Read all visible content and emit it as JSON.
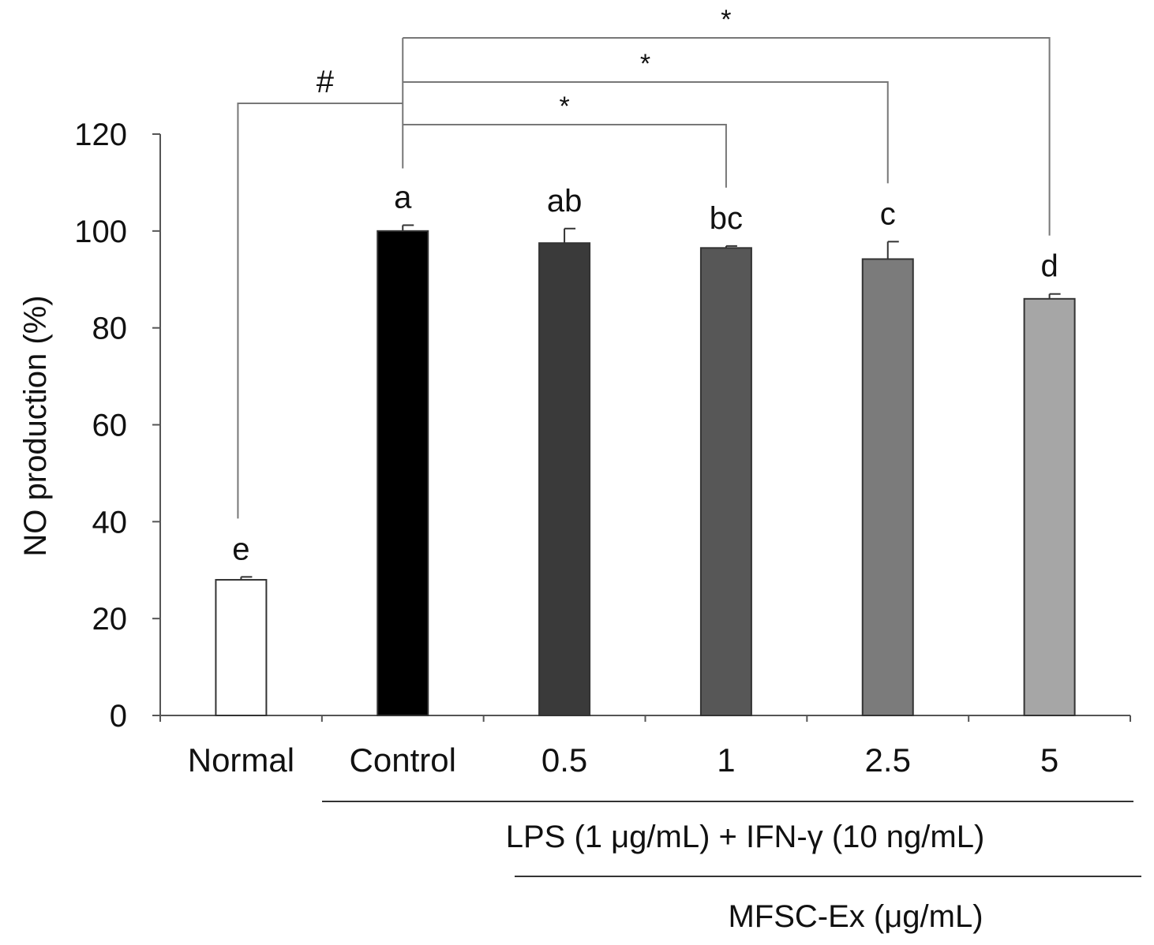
{
  "chart_data": {
    "type": "bar",
    "title": "",
    "xlabel": "",
    "ylabel": "NO production (%)",
    "ylim": [
      0,
      120
    ],
    "yticks": [
      0,
      20,
      40,
      60,
      80,
      100,
      120
    ],
    "categories": [
      "Normal",
      "Control",
      "0.5",
      "1",
      "2.5",
      "5"
    ],
    "values": [
      28,
      100,
      97.5,
      96.5,
      94.2,
      86
    ],
    "errors": [
      0.6,
      1.2,
      3.0,
      0.4,
      3.6,
      1.0
    ],
    "colors": [
      "#ffffff",
      "#000000",
      "#3a3a3a",
      "#575757",
      "#7b7b7b",
      "#a6a6a6"
    ],
    "letters": [
      "e",
      "a",
      "ab",
      "bc",
      "c",
      "d"
    ],
    "significance": {
      "hash_label": "#",
      "hash_pair": [
        "Normal",
        "Control"
      ],
      "star_label": "*",
      "star_pairs": [
        [
          "Control",
          "1"
        ],
        [
          "Control",
          "2.5"
        ],
        [
          "Control",
          "5"
        ]
      ]
    },
    "treatment_labels": {
      "line1": "LPS (1 μg/mL) + IFN-γ (10 ng/mL)",
      "line2": "MFSC-Ex (μg/mL)"
    }
  }
}
